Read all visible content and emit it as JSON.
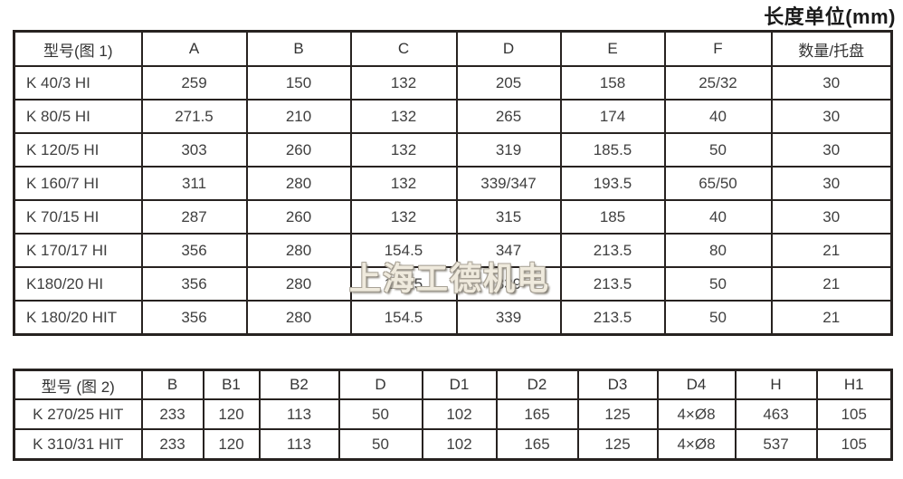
{
  "unit_label": "长度单位(mm)",
  "watermark_text": "上海工德机电",
  "table1": {
    "headers": [
      "型号(图 1)",
      "A",
      "B",
      "C",
      "D",
      "E",
      "F",
      "数量/托盘"
    ],
    "rows": [
      [
        "K 40/3 HI",
        "259",
        "150",
        "132",
        "205",
        "158",
        "25/32",
        "30"
      ],
      [
        "K 80/5 HI",
        "271.5",
        "210",
        "132",
        "265",
        "174",
        "40",
        "30"
      ],
      [
        "K 120/5 HI",
        "303",
        "260",
        "132",
        "319",
        "185.5",
        "50",
        "30"
      ],
      [
        "K 160/7 HI",
        "311",
        "280",
        "132",
        "339/347",
        "193.5",
        "65/50",
        "30"
      ],
      [
        "K 70/15 HI",
        "287",
        "260",
        "132",
        "315",
        "185",
        "40",
        "30"
      ],
      [
        "K 170/17 HI",
        "356",
        "280",
        "154.5",
        "347",
        "213.5",
        "80",
        "21"
      ],
      [
        "K180/20 HI",
        "356",
        "280",
        "154.5",
        "339",
        "213.5",
        "50",
        "21"
      ],
      [
        "K 180/20 HIT",
        "356",
        "280",
        "154.5",
        "339",
        "213.5",
        "50",
        "21"
      ]
    ]
  },
  "table2": {
    "headers": [
      "型号 (图 2)",
      "B",
      "B1",
      "B2",
      "D",
      "D1",
      "D2",
      "D3",
      "D4",
      "H",
      "H1"
    ],
    "rows": [
      [
        "K 270/25 HIT",
        "233",
        "120",
        "113",
        "50",
        "102",
        "165",
        "125",
        "4×Ø8",
        "463",
        "105"
      ],
      [
        "K 310/31 HIT",
        "233",
        "120",
        "113",
        "50",
        "102",
        "165",
        "125",
        "4×Ø8",
        "537",
        "105"
      ]
    ]
  }
}
